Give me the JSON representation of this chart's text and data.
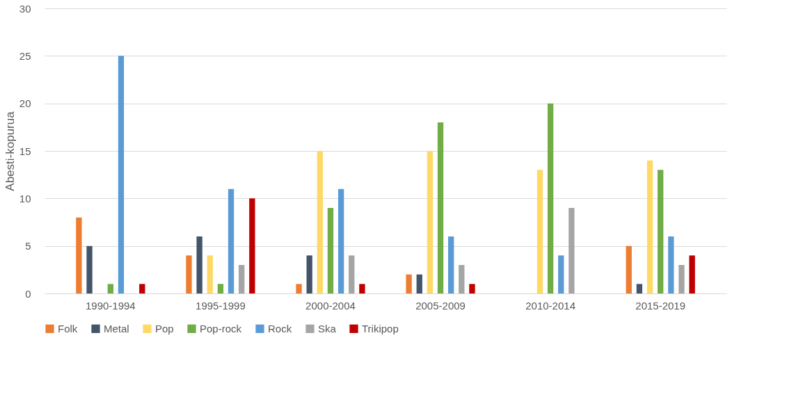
{
  "chart_data": {
    "type": "bar",
    "ylabel": "Abesti-kopurua",
    "categories": [
      "1990-1994",
      "1995-1999",
      "2000-2004",
      "2005-2009",
      "2010-2014",
      "2015-2019"
    ],
    "series": [
      {
        "name": "Folk",
        "color": "#ed7d31",
        "values": [
          8,
          4,
          1,
          2,
          0,
          5
        ]
      },
      {
        "name": "Metal",
        "color": "#44546a",
        "values": [
          5,
          6,
          4,
          2,
          0,
          1
        ]
      },
      {
        "name": "Pop",
        "color": "#ffd966",
        "values": [
          0,
          4,
          15,
          15,
          13,
          14
        ]
      },
      {
        "name": "Pop-rock",
        "color": "#70ad47",
        "values": [
          1,
          1,
          9,
          18,
          20,
          13
        ]
      },
      {
        "name": "Rock",
        "color": "#5b9bd5",
        "values": [
          25,
          11,
          11,
          6,
          4,
          6
        ]
      },
      {
        "name": "Ska",
        "color": "#a5a5a5",
        "values": [
          0,
          3,
          4,
          3,
          9,
          3
        ]
      },
      {
        "name": "Trikipop",
        "color": "#c00000",
        "values": [
          1,
          10,
          1,
          1,
          0,
          4
        ]
      }
    ],
    "ylim": [
      0,
      30
    ],
    "yticks": [
      0,
      5,
      10,
      15,
      20,
      25,
      30
    ],
    "grid": "y",
    "legend": "bottom"
  }
}
